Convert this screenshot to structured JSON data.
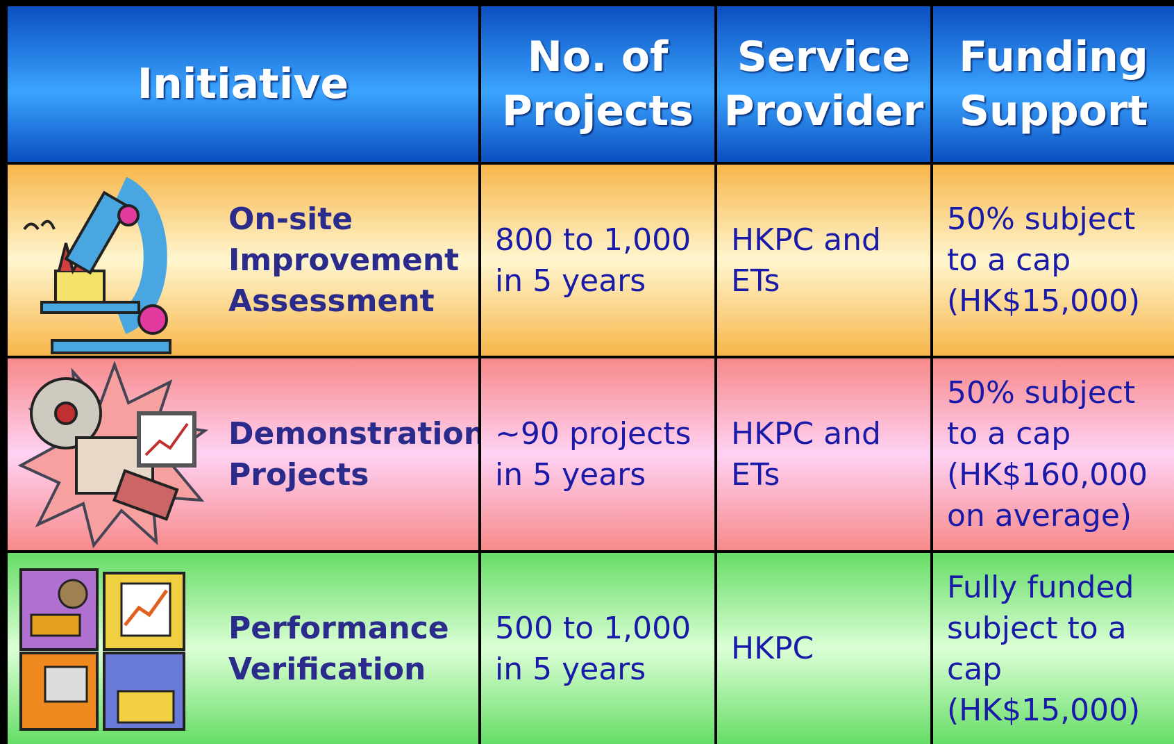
{
  "table": {
    "header": [
      [
        "Initiative"
      ],
      [
        "No. of",
        "Projects"
      ],
      [
        "Service",
        "Provider"
      ],
      [
        "Funding",
        "Support"
      ]
    ],
    "rows": [
      [
        [
          "On-site",
          "Improvement",
          "Assessment"
        ],
        [
          "800 to 1,000",
          "in 5 years"
        ],
        [
          "HKPC and",
          "ETs"
        ],
        [
          "50% subject",
          "to a cap",
          "(HK$15,000)"
        ]
      ],
      [
        [
          "Demonstration",
          "Projects"
        ],
        [
          "~90 projects",
          "in 5 years"
        ],
        [
          "HKPC and",
          "ETs"
        ],
        [
          "50% subject",
          "to a cap",
          "(HK$160,000",
          "on average)"
        ]
      ],
      [
        [
          "Performance",
          "Verification"
        ],
        [
          "500 to 1,000",
          "in 5 years"
        ],
        [
          "HKPC"
        ],
        [
          "Fully funded",
          "subject to a",
          "cap",
          "(HK$15,000)"
        ]
      ]
    ]
  }
}
